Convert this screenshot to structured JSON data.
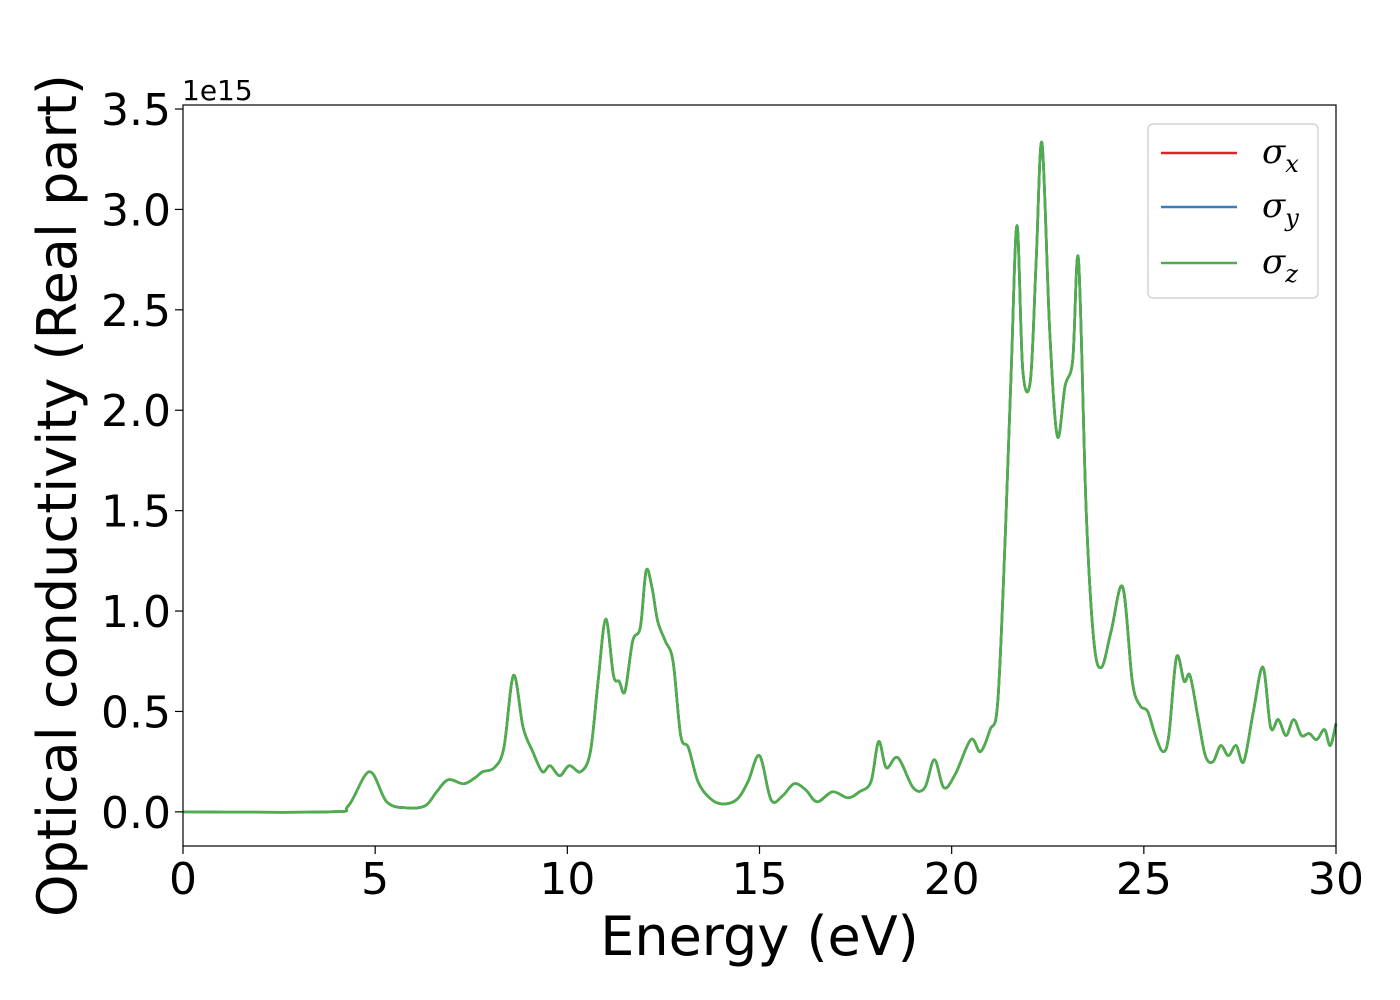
{
  "chart_data": {
    "type": "line",
    "xlabel": "Energy (eV)",
    "ylabel": "Optical conductivity (Real part)",
    "y_offset_label": "1e15",
    "xlim": [
      0,
      30
    ],
    "ylim": [
      -0.17,
      3.52
    ],
    "y_scale_factor": 1000000000000000.0,
    "x_ticks": [
      0,
      5,
      10,
      15,
      20,
      25,
      30
    ],
    "x_tick_labels": [
      "0",
      "5",
      "10",
      "15",
      "20",
      "25",
      "30"
    ],
    "y_ticks": [
      0.0,
      0.5,
      1.0,
      1.5,
      2.0,
      2.5,
      3.0,
      3.5
    ],
    "y_tick_labels": [
      "0.0",
      "0.5",
      "1.0",
      "1.5",
      "2.0",
      "2.5",
      "3.0",
      "3.5"
    ],
    "grid": false,
    "legend_position": "top-right",
    "series": [
      {
        "name": "σx",
        "symbol": "σ",
        "subscript": "x",
        "color": "#d62728",
        "x": [
          0,
          3.8,
          4.3,
          4.85,
          5.3,
          5.8,
          6.3,
          6.6,
          6.9,
          7.3,
          7.6,
          7.8,
          8.1,
          8.35,
          8.6,
          8.85,
          9.1,
          9.35,
          9.55,
          9.8,
          10.05,
          10.35,
          10.6,
          10.8,
          11.0,
          11.2,
          11.35,
          11.5,
          11.7,
          11.9,
          12.05,
          12.2,
          12.35,
          12.55,
          12.75,
          12.95,
          13.15,
          13.4,
          13.7,
          14.0,
          14.4,
          14.7,
          15.0,
          15.3,
          15.6,
          15.9,
          16.2,
          16.5,
          16.9,
          17.3,
          17.6,
          17.9,
          18.1,
          18.3,
          18.6,
          19.0,
          19.3,
          19.55,
          19.8,
          20.1,
          20.5,
          20.75,
          21.0,
          21.2,
          21.4,
          21.55,
          21.7,
          21.85,
          22.05,
          22.2,
          22.35,
          22.55,
          22.75,
          22.95,
          23.15,
          23.3,
          23.5,
          23.7,
          23.9,
          24.15,
          24.45,
          24.7,
          24.9,
          25.1,
          25.3,
          25.5,
          25.65,
          25.85,
          26.05,
          26.2,
          26.4,
          26.6,
          26.8,
          27.0,
          27.2,
          27.4,
          27.6,
          27.85,
          28.1,
          28.3,
          28.5,
          28.7,
          28.9,
          29.1,
          29.3,
          29.5,
          29.7,
          29.85,
          30.0
        ],
        "y": [
          0.0,
          0.0,
          0.03,
          0.2,
          0.05,
          0.02,
          0.03,
          0.1,
          0.16,
          0.14,
          0.17,
          0.2,
          0.22,
          0.32,
          0.68,
          0.42,
          0.3,
          0.2,
          0.23,
          0.18,
          0.23,
          0.2,
          0.3,
          0.65,
          0.96,
          0.68,
          0.65,
          0.6,
          0.85,
          0.92,
          1.2,
          1.12,
          0.95,
          0.85,
          0.75,
          0.38,
          0.32,
          0.15,
          0.07,
          0.04,
          0.06,
          0.15,
          0.28,
          0.06,
          0.08,
          0.14,
          0.11,
          0.05,
          0.1,
          0.07,
          0.1,
          0.15,
          0.35,
          0.22,
          0.27,
          0.12,
          0.12,
          0.26,
          0.12,
          0.19,
          0.36,
          0.3,
          0.41,
          0.55,
          1.4,
          2.2,
          2.92,
          2.2,
          2.15,
          2.75,
          3.33,
          2.4,
          1.87,
          2.12,
          2.25,
          2.75,
          1.5,
          0.85,
          0.72,
          0.9,
          1.12,
          0.65,
          0.53,
          0.5,
          0.38,
          0.3,
          0.38,
          0.77,
          0.65,
          0.68,
          0.48,
          0.28,
          0.25,
          0.33,
          0.28,
          0.33,
          0.25,
          0.5,
          0.72,
          0.42,
          0.46,
          0.38,
          0.46,
          0.38,
          0.39,
          0.36,
          0.41,
          0.33,
          0.44
        ]
      },
      {
        "name": "σy",
        "symbol": "σ",
        "subscript": "y",
        "color": "#3a7dbc",
        "x": [
          0,
          3.8,
          4.3,
          4.85,
          5.3,
          5.8,
          6.3,
          6.6,
          6.9,
          7.3,
          7.6,
          7.8,
          8.1,
          8.35,
          8.6,
          8.85,
          9.1,
          9.35,
          9.55,
          9.8,
          10.05,
          10.35,
          10.6,
          10.8,
          11.0,
          11.2,
          11.35,
          11.5,
          11.7,
          11.9,
          12.05,
          12.2,
          12.35,
          12.55,
          12.75,
          12.95,
          13.15,
          13.4,
          13.7,
          14.0,
          14.4,
          14.7,
          15.0,
          15.3,
          15.6,
          15.9,
          16.2,
          16.5,
          16.9,
          17.3,
          17.6,
          17.9,
          18.1,
          18.3,
          18.6,
          19.0,
          19.3,
          19.55,
          19.8,
          20.1,
          20.5,
          20.75,
          21.0,
          21.2,
          21.4,
          21.55,
          21.7,
          21.85,
          22.05,
          22.2,
          22.35,
          22.55,
          22.75,
          22.95,
          23.15,
          23.3,
          23.5,
          23.7,
          23.9,
          24.15,
          24.45,
          24.7,
          24.9,
          25.1,
          25.3,
          25.5,
          25.65,
          25.85,
          26.05,
          26.2,
          26.4,
          26.6,
          26.8,
          27.0,
          27.2,
          27.4,
          27.6,
          27.85,
          28.1,
          28.3,
          28.5,
          28.7,
          28.9,
          29.1,
          29.3,
          29.5,
          29.7,
          29.85,
          30.0
        ],
        "y": [
          0.0,
          0.0,
          0.03,
          0.2,
          0.05,
          0.02,
          0.03,
          0.1,
          0.16,
          0.14,
          0.17,
          0.2,
          0.22,
          0.32,
          0.68,
          0.42,
          0.3,
          0.2,
          0.23,
          0.18,
          0.23,
          0.2,
          0.3,
          0.65,
          0.96,
          0.68,
          0.65,
          0.6,
          0.85,
          0.92,
          1.2,
          1.12,
          0.95,
          0.85,
          0.75,
          0.38,
          0.32,
          0.15,
          0.07,
          0.04,
          0.06,
          0.15,
          0.28,
          0.06,
          0.08,
          0.14,
          0.11,
          0.05,
          0.1,
          0.07,
          0.1,
          0.15,
          0.35,
          0.22,
          0.27,
          0.12,
          0.12,
          0.26,
          0.12,
          0.19,
          0.36,
          0.3,
          0.41,
          0.55,
          1.4,
          2.2,
          2.92,
          2.2,
          2.15,
          2.75,
          3.33,
          2.4,
          1.87,
          2.12,
          2.25,
          2.75,
          1.5,
          0.85,
          0.72,
          0.9,
          1.12,
          0.65,
          0.53,
          0.5,
          0.38,
          0.3,
          0.38,
          0.77,
          0.65,
          0.68,
          0.48,
          0.28,
          0.25,
          0.33,
          0.28,
          0.33,
          0.25,
          0.5,
          0.72,
          0.42,
          0.46,
          0.38,
          0.46,
          0.38,
          0.39,
          0.36,
          0.41,
          0.33,
          0.44
        ]
      },
      {
        "name": "σz",
        "symbol": "σ",
        "subscript": "z",
        "color": "#4daf4a",
        "x": [
          0,
          3.8,
          4.3,
          4.85,
          5.3,
          5.8,
          6.3,
          6.6,
          6.9,
          7.3,
          7.6,
          7.8,
          8.1,
          8.35,
          8.6,
          8.85,
          9.1,
          9.35,
          9.55,
          9.8,
          10.05,
          10.35,
          10.6,
          10.8,
          11.0,
          11.2,
          11.35,
          11.5,
          11.7,
          11.9,
          12.05,
          12.2,
          12.35,
          12.55,
          12.75,
          12.95,
          13.15,
          13.4,
          13.7,
          14.0,
          14.4,
          14.7,
          15.0,
          15.3,
          15.6,
          15.9,
          16.2,
          16.5,
          16.9,
          17.3,
          17.6,
          17.9,
          18.1,
          18.3,
          18.6,
          19.0,
          19.3,
          19.55,
          19.8,
          20.1,
          20.5,
          20.75,
          21.0,
          21.2,
          21.4,
          21.55,
          21.7,
          21.85,
          22.05,
          22.2,
          22.35,
          22.55,
          22.75,
          22.95,
          23.15,
          23.3,
          23.5,
          23.7,
          23.9,
          24.15,
          24.45,
          24.7,
          24.9,
          25.1,
          25.3,
          25.5,
          25.65,
          25.85,
          26.05,
          26.2,
          26.4,
          26.6,
          26.8,
          27.0,
          27.2,
          27.4,
          27.6,
          27.85,
          28.1,
          28.3,
          28.5,
          28.7,
          28.9,
          29.1,
          29.3,
          29.5,
          29.7,
          29.85,
          30.0
        ],
        "y": [
          0.0,
          0.0,
          0.03,
          0.2,
          0.05,
          0.02,
          0.03,
          0.1,
          0.16,
          0.14,
          0.17,
          0.2,
          0.22,
          0.32,
          0.68,
          0.42,
          0.3,
          0.2,
          0.23,
          0.18,
          0.23,
          0.2,
          0.3,
          0.65,
          0.96,
          0.68,
          0.65,
          0.6,
          0.85,
          0.92,
          1.2,
          1.12,
          0.95,
          0.85,
          0.75,
          0.38,
          0.32,
          0.15,
          0.07,
          0.04,
          0.06,
          0.15,
          0.28,
          0.06,
          0.08,
          0.14,
          0.11,
          0.05,
          0.1,
          0.07,
          0.1,
          0.15,
          0.35,
          0.22,
          0.27,
          0.12,
          0.12,
          0.26,
          0.12,
          0.19,
          0.36,
          0.3,
          0.41,
          0.55,
          1.4,
          2.2,
          2.92,
          2.2,
          2.15,
          2.75,
          3.33,
          2.4,
          1.87,
          2.12,
          2.25,
          2.75,
          1.5,
          0.85,
          0.72,
          0.9,
          1.12,
          0.65,
          0.53,
          0.5,
          0.38,
          0.3,
          0.38,
          0.77,
          0.65,
          0.68,
          0.48,
          0.28,
          0.25,
          0.33,
          0.28,
          0.33,
          0.25,
          0.5,
          0.72,
          0.42,
          0.46,
          0.38,
          0.46,
          0.38,
          0.39,
          0.36,
          0.41,
          0.33,
          0.44
        ]
      }
    ]
  }
}
